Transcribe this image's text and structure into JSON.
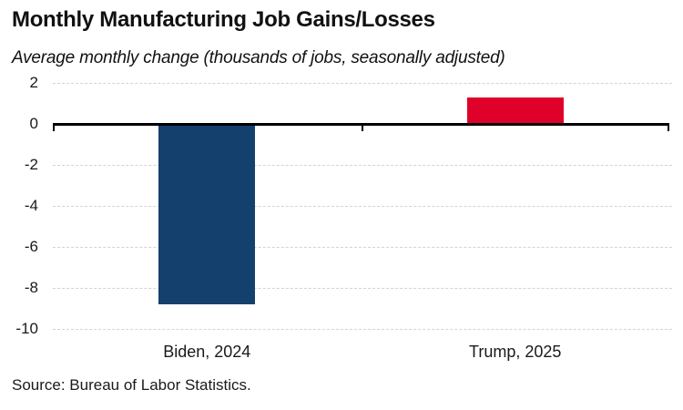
{
  "page": {
    "title": "Monthly Manufacturing Job Gains/Losses",
    "subtitle": "Average monthly change (thousands of jobs, seasonally adjusted)",
    "source": "Source: Bureau of Labor Statistics."
  },
  "chart_data": {
    "type": "bar",
    "title": "Monthly Manufacturing Job Gains/Losses",
    "subtitle": "Average monthly change (thousands of jobs, seasonally adjusted)",
    "categories": [
      "Biden, 2024",
      "Trump, 2025"
    ],
    "values": [
      -8.8,
      1.3
    ],
    "bar_colors": [
      "#14406E",
      "#E0012B"
    ],
    "ylim": [
      -10,
      2
    ],
    "yticks": [
      2,
      0,
      -2,
      -4,
      -6,
      -8,
      -10
    ],
    "grid": true,
    "gridline_color": "#d4d4d4",
    "axis_color": "#000000",
    "legend": "none",
    "source": "Source: Bureau of Labor Statistics."
  }
}
